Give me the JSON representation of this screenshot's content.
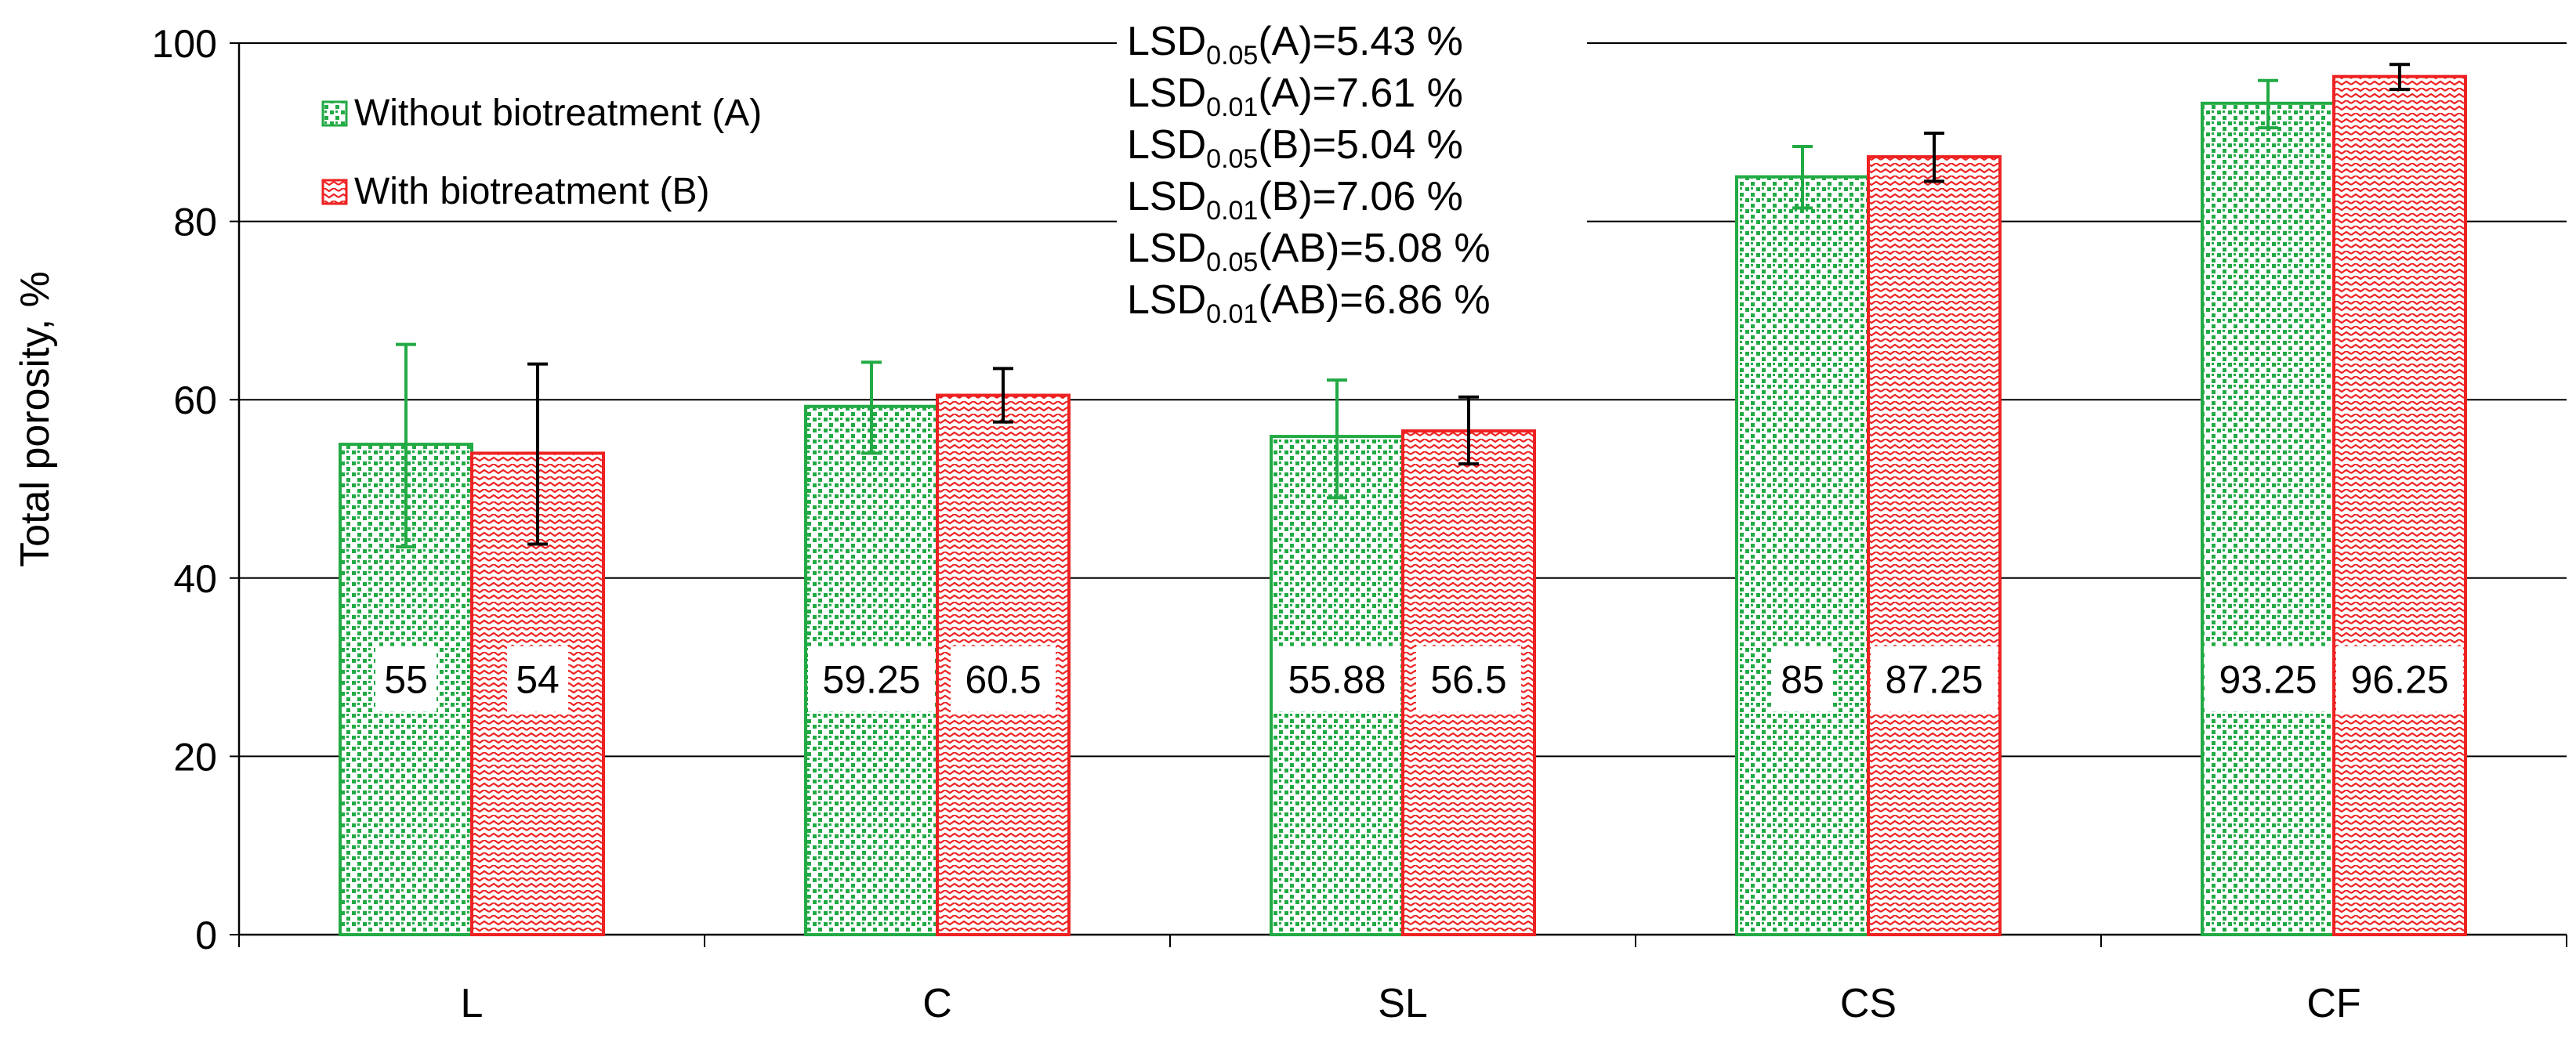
{
  "chart_data": {
    "type": "bar",
    "title": "",
    "xlabel": "",
    "ylabel": "Total porosity, %",
    "ylim": [
      0,
      100
    ],
    "yticks": [
      0,
      20,
      40,
      60,
      80,
      100
    ],
    "grid": true,
    "legend_position": "top-left",
    "categories": [
      "L",
      "C",
      "SL",
      "CS",
      "CF"
    ],
    "series": [
      {
        "name": "Without biotreatment (A)",
        "color": "#22aa44",
        "pattern": "dotted",
        "values": [
          55,
          59.25,
          55.88,
          85,
          93.25
        ],
        "value_labels": [
          "55",
          "59.25",
          "55.88",
          "85",
          "93.25"
        ],
        "error_low": [
          43.5,
          54,
          49,
          81.5,
          90.5
        ],
        "error_high": [
          66.2,
          64.2,
          62.2,
          88.4,
          95.8
        ]
      },
      {
        "name": "With biotreatment (B)",
        "color": "#ee2222",
        "pattern": "wave",
        "values": [
          54,
          60.5,
          56.5,
          87.25,
          96.25
        ],
        "value_labels": [
          "54",
          "60.5",
          "56.5",
          "87.25",
          "96.25"
        ],
        "error_low": [
          43.8,
          57.5,
          52.8,
          84.5,
          94.8
        ],
        "error_high": [
          64,
          63.5,
          60.3,
          89.9,
          97.6
        ]
      }
    ],
    "annotations": [
      {
        "base": "LSD",
        "sub": "0.05",
        "rest": "(A)=5.43 %"
      },
      {
        "base": "LSD",
        "sub": "0.01",
        "rest": "(A)=7.61 %"
      },
      {
        "base": "LSD",
        "sub": "0.05",
        "rest": "(B)=5.04 %"
      },
      {
        "base": "LSD",
        "sub": "0.01",
        "rest": "(B)=7.06 %"
      },
      {
        "base": "LSD",
        "sub": "0.05",
        "rest": "(AB)=5.08 %"
      },
      {
        "base": "LSD",
        "sub": "0.01",
        "rest": "(AB)=6.86 %"
      }
    ]
  }
}
